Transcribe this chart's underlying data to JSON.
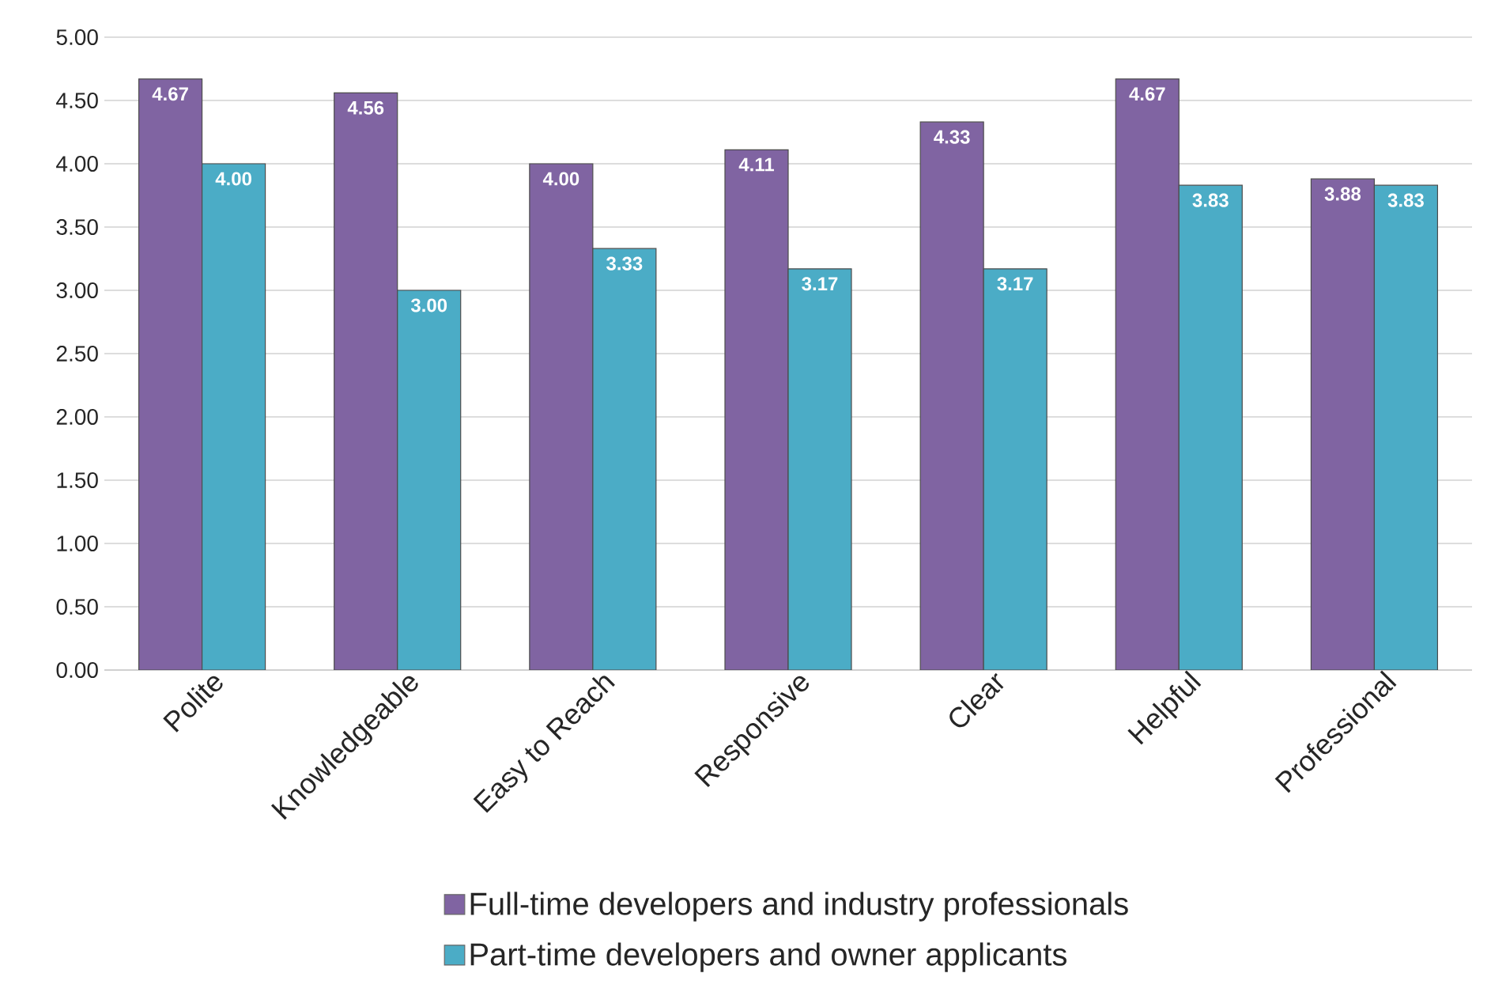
{
  "chart_data": {
    "type": "bar",
    "categories": [
      "Polite",
      "Knowledgeable",
      "Easy to Reach",
      "Responsive",
      "Clear",
      "Helpful",
      "Professional"
    ],
    "series": [
      {
        "name": "Full-time developers  and industry professionals",
        "color": "#8064a2",
        "values": [
          4.67,
          4.56,
          4.0,
          4.11,
          4.33,
          4.67,
          3.88
        ],
        "value_labels": [
          "4.67",
          "4.56",
          "4.00",
          "4.11",
          "4.33",
          "4.67",
          "3.88"
        ]
      },
      {
        "name": "Part-time developers and owner applicants",
        "color": "#4bacc6",
        "values": [
          4.0,
          3.0,
          3.33,
          3.17,
          3.17,
          3.83,
          3.83
        ],
        "value_labels": [
          "4.00",
          "3.00",
          "3.33",
          "3.17",
          "3.17",
          "3.83",
          "3.83"
        ]
      }
    ],
    "ylim": [
      0,
      5
    ],
    "yticks": [
      {
        "value": 0,
        "label": "0.00"
      },
      {
        "value": 0.5,
        "label": "0.50"
      },
      {
        "value": 1,
        "label": "1.00"
      },
      {
        "value": 1.5,
        "label": "1.50"
      },
      {
        "value": 2,
        "label": "2.00"
      },
      {
        "value": 2.5,
        "label": "2.50"
      },
      {
        "value": 3,
        "label": "3.00"
      },
      {
        "value": 3.5,
        "label": "3.50"
      },
      {
        "value": 4,
        "label": "4.00"
      },
      {
        "value": 4.5,
        "label": "4.50"
      },
      {
        "value": 5,
        "label": "5.00"
      }
    ],
    "grid": "y",
    "legend": "bottom"
  }
}
